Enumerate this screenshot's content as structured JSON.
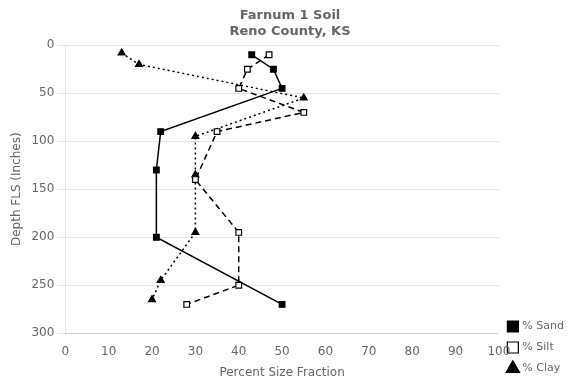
{
  "chart_data": {
    "type": "line",
    "title": "Farnum 1 Soil\nReno County, KS",
    "xlabel": "Percent Size Fraction",
    "ylabel": "Depth FLS (Inches)",
    "xlim": [
      0,
      100
    ],
    "ylim": [
      300,
      0
    ],
    "xticks": [
      0,
      10,
      20,
      30,
      40,
      50,
      60,
      70,
      80,
      90,
      100
    ],
    "yticks": [
      0,
      50,
      100,
      150,
      200,
      250,
      300
    ],
    "grid": "y",
    "legend": "lower right",
    "series": [
      {
        "name": "% Sand",
        "color": "#000000",
        "marker": "square",
        "line_style": "solid",
        "x": [
          43,
          48,
          50,
          22,
          21,
          21,
          50
        ],
        "values": [
          10,
          25,
          45,
          90,
          130,
          200,
          270
        ]
      },
      {
        "name": "% Silt",
        "color": "#000000",
        "marker": "open_square",
        "line_style": "dashed",
        "x": [
          47,
          42,
          40,
          55,
          35,
          30,
          40,
          40,
          28
        ],
        "values": [
          10,
          25,
          45,
          70,
          90,
          140,
          195,
          250,
          270
        ]
      },
      {
        "name": "% Clay",
        "color": "#000000",
        "marker": "triangle",
        "line_style": "dotted",
        "x": [
          13,
          17,
          55,
          30,
          30,
          30,
          22,
          20
        ],
        "values": [
          8,
          20,
          55,
          95,
          135,
          195,
          245,
          265
        ]
      }
    ]
  }
}
